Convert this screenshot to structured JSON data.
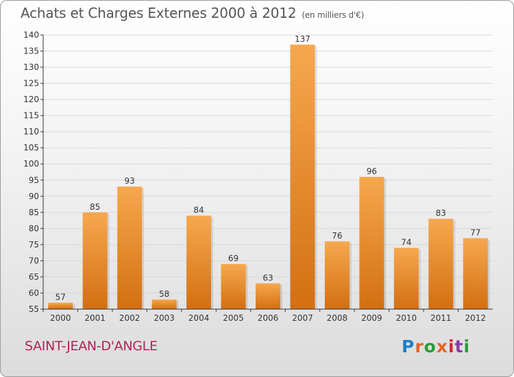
{
  "header": {
    "title": "Achats et Charges Externes 2000 à 2012",
    "unit": "(en milliers d'€)"
  },
  "footer": {
    "commune": "SAINT-JEAN-D'ANGLE",
    "logo": "Proxiti",
    "logo_colors": [
      "#1f7fc4",
      "#e0662a",
      "#2a9c3a",
      "#e0662a",
      "#d7262e",
      "#8a3aa0",
      "#2a9c3a"
    ]
  },
  "colors": {
    "bar_top": "#f6a84e",
    "bar_bottom": "#d36f12",
    "axis": "#333333",
    "grid": "#d8d8d8",
    "text": "#333333"
  },
  "chart_data": {
    "type": "bar",
    "title": "Achats et Charges Externes 2000 à 2012",
    "subtitle": "(en milliers d'€)",
    "xlabel": "",
    "ylabel": "",
    "categories": [
      "2000",
      "2001",
      "2002",
      "2003",
      "2004",
      "2005",
      "2006",
      "2007",
      "2008",
      "2009",
      "2010",
      "2011",
      "2012"
    ],
    "values": [
      57,
      85,
      93,
      58,
      84,
      69,
      63,
      137,
      76,
      96,
      74,
      83,
      77
    ],
    "ylim": [
      55,
      140
    ],
    "yticks": [
      55,
      60,
      65,
      70,
      75,
      80,
      85,
      90,
      95,
      100,
      105,
      110,
      115,
      120,
      125,
      130,
      135,
      140
    ],
    "grid": true,
    "legend": "none"
  }
}
